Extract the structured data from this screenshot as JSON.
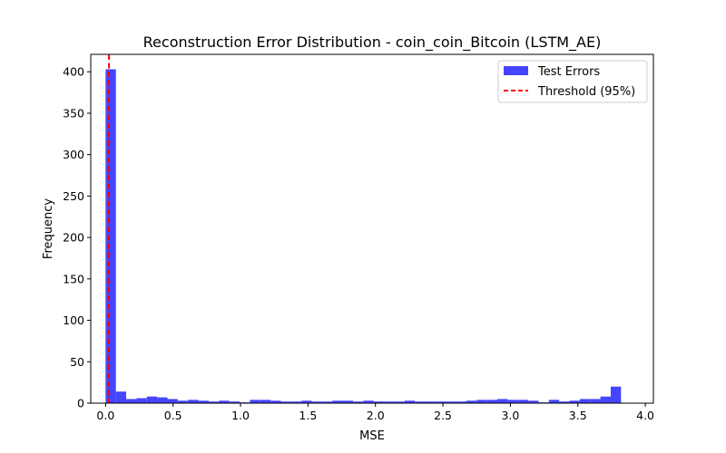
{
  "chart_data": {
    "type": "histogram",
    "title": "Reconstruction Error Distribution - coin_coin_Bitcoin (LSTM_AE)",
    "xlabel": "MSE",
    "ylabel": "Frequency",
    "xlim": [
      -0.11,
      4.06
    ],
    "ylim": [
      0,
      421
    ],
    "x_ticks": [
      0.0,
      0.5,
      1.0,
      1.5,
      2.0,
      2.5,
      3.0,
      3.5,
      4.0
    ],
    "x_tick_labels": [
      "0.0",
      "0.5",
      "1.0",
      "1.5",
      "2.0",
      "2.5",
      "3.0",
      "3.5",
      "4.0"
    ],
    "y_ticks": [
      0,
      50,
      100,
      150,
      200,
      250,
      300,
      350,
      400
    ],
    "y_tick_labels": [
      "0",
      "50",
      "100",
      "150",
      "200",
      "250",
      "300",
      "350",
      "400"
    ],
    "grid": false,
    "legend_position": "top-right",
    "series": [
      {
        "name": "Test Errors",
        "kind": "histogram",
        "color": "#4545ff",
        "bin_start": 0.0,
        "bin_width": 0.0764,
        "counts": [
          403,
          14,
          5,
          6,
          8,
          7,
          5,
          3,
          4,
          3,
          2,
          3,
          2,
          1,
          4,
          4,
          3,
          2,
          2,
          3,
          2,
          2,
          3,
          3,
          2,
          3,
          2,
          2,
          2,
          3,
          2,
          2,
          2,
          2,
          2,
          3,
          4,
          4,
          5,
          4,
          4,
          3,
          1,
          4,
          2,
          3,
          5,
          5,
          8,
          20
        ]
      },
      {
        "name": "Threshold (95%)",
        "kind": "vline",
        "color": "#ff0000",
        "style": "dashed",
        "x": 0.025
      }
    ]
  }
}
